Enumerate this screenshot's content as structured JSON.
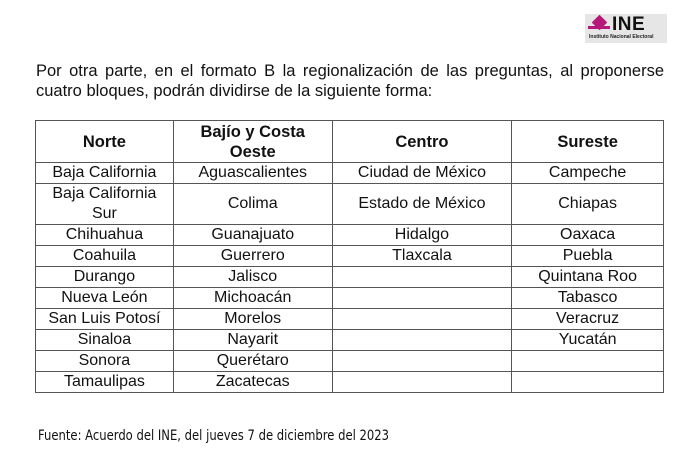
{
  "logo": {
    "text": "INE",
    "subtitle": "Instituto Nacional Electoral",
    "color": "#b5177a"
  },
  "intro": "Por otra parte, en el formato B la regionalización de las preguntas, al proponerse cuatro bloques, podrán dividirse de la siguiente forma:",
  "table": {
    "headers": [
      "Norte",
      "Bajío y Costa Oeste",
      "Centro",
      "Sureste"
    ],
    "rows": [
      [
        "Baja California",
        "Aguascalientes",
        "Ciudad de México",
        "Campeche"
      ],
      [
        "Baja California Sur",
        "Colima",
        "Estado de México",
        "Chiapas"
      ],
      [
        "Chihuahua",
        "Guanajuato",
        "Hidalgo",
        "Oaxaca"
      ],
      [
        "Coahuila",
        "Guerrero",
        "Tlaxcala",
        "Puebla"
      ],
      [
        "Durango",
        "Jalisco",
        "",
        "Quintana Roo"
      ],
      [
        "Nueva León",
        "Michoacán",
        "",
        "Tabasco"
      ],
      [
        "San Luis Potosí",
        "Morelos",
        "",
        "Veracruz"
      ],
      [
        "Sinaloa",
        "Nayarit",
        "",
        "Yucatán"
      ],
      [
        "Sonora",
        "Querétaro",
        "",
        ""
      ],
      [
        "Tamaulipas",
        "Zacatecas",
        "",
        ""
      ]
    ]
  },
  "source": "Fuente: Acuerdo del INE, del jueves 7 de diciembre del 2023"
}
